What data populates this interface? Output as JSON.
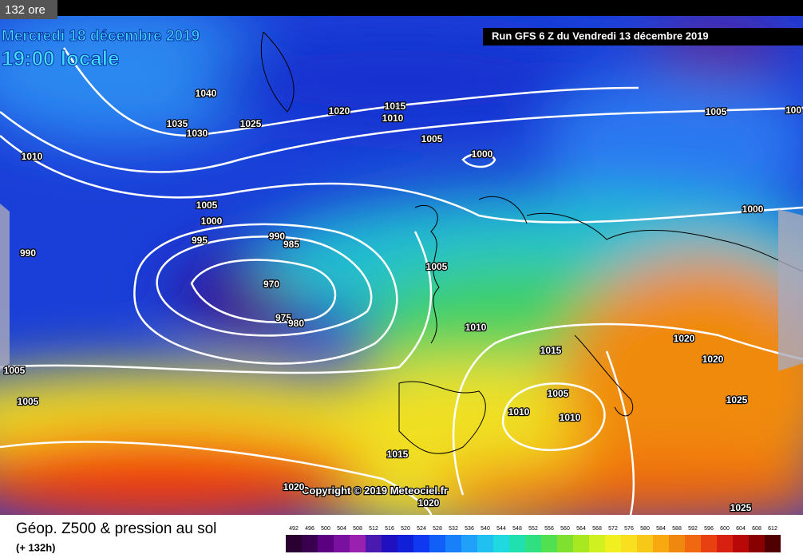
{
  "badge": "132 ore",
  "date": "Mercredi 18 décembre 2019",
  "time": "19:00 locale",
  "run": "Run GFS 6 Z du Vendredi 13 décembre 2019",
  "copyright": "Copyright © 2019 Meteociel.fr",
  "footer": {
    "title": "Géop. Z500 & pression au sol",
    "subtitle": "(+ 132h)"
  },
  "scale": {
    "labels": [
      492,
      496,
      500,
      504,
      508,
      512,
      516,
      520,
      524,
      528,
      532,
      536,
      540,
      544,
      548,
      552,
      556,
      560,
      564,
      568,
      572,
      576,
      580,
      584,
      588,
      592,
      596,
      600,
      604,
      608,
      612
    ]
  },
  "isobar_labels": [
    "1040",
    "1035",
    "1030",
    "1025",
    "1020",
    "1015",
    "1010",
    "1005",
    "1000",
    "1005",
    "100",
    "1010",
    "1005",
    "1000",
    "995",
    "990",
    "985",
    "970",
    "975",
    "980",
    "990",
    "1005",
    "1010",
    "1015",
    "1020",
    "1020",
    "1025",
    "1005",
    "1010",
    "1010",
    "1015",
    "1020",
    "1020",
    "1025",
    "1005",
    "1005",
    "1000"
  ]
}
